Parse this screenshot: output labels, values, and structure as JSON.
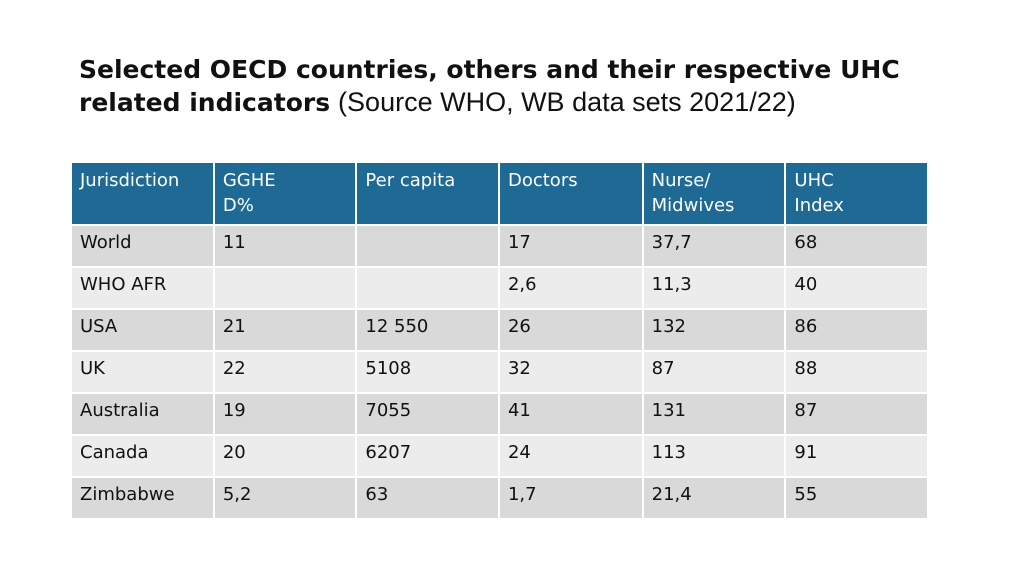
{
  "title": {
    "bold_text": "Selected OECD countries, others and their respective UHC related indicators",
    "source_text": "(Source WHO, WB data sets 2021/22)"
  },
  "table": {
    "headers": [
      "Jurisdiction",
      "GGHE\nD%",
      "Per capita",
      "Doctors",
      "Nurse/\nMidwives",
      "UHC\nIndex"
    ],
    "rows": [
      [
        "World",
        "11",
        "",
        "17",
        "37,7",
        "68"
      ],
      [
        "WHO AFR",
        "",
        "",
        "2,6",
        "11,3",
        "40"
      ],
      [
        "USA",
        "21",
        "12 550",
        "26",
        "132",
        "86"
      ],
      [
        "UK",
        "22",
        "5108",
        "32",
        "87",
        "88"
      ],
      [
        "Australia",
        "19",
        "7055",
        "41",
        "131",
        "87"
      ],
      [
        "Canada",
        "20",
        "6207",
        "24",
        "113",
        "91"
      ],
      [
        "Zimbabwe",
        "5,2",
        "63",
        "1,7",
        "21,4",
        "55"
      ]
    ]
  }
}
